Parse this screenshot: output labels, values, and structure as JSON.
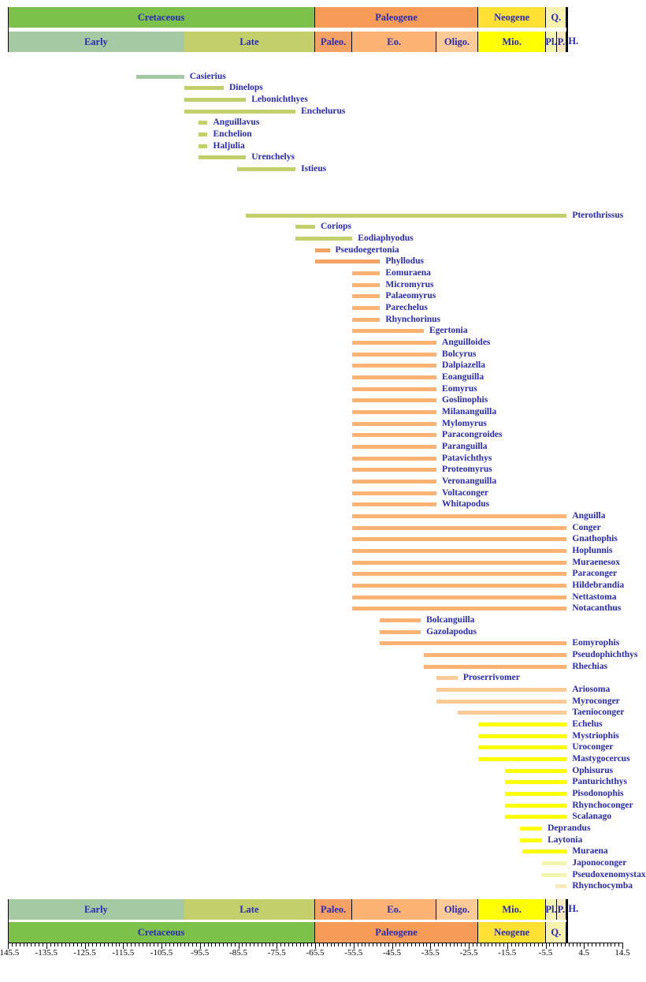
{
  "chart_data": {
    "type": "bar",
    "variant": "stratigraphic-range-chart",
    "title": "",
    "xlabel": "",
    "ylabel": "",
    "x_axis": {
      "min": -145.5,
      "max": 14.5,
      "major_tick_step": 10,
      "minor_tick_step": 1,
      "tick_labels": [
        "-145.5",
        "-135.5",
        "-125.5",
        "-115.5",
        "-105.5",
        "-95.5",
        "-85.5",
        "-75.5",
        "-65.5",
        "-55.5",
        "-45.5",
        "-35.5",
        "-25.5",
        "-15.5",
        "-5.5",
        "4.5",
        "14.5"
      ]
    },
    "colors": {
      "cretaceous": "#7CC24A",
      "early_cretaceous": "#A5C9A3",
      "late_cretaceous": "#C2CF6B",
      "paleogene": "#F79C58",
      "paleocene": "#F4A263",
      "eocene": "#FBB272",
      "oligocene": "#FBCA96",
      "neogene": "#FFE033",
      "miocene": "#FFFF00",
      "pliocene": "#F2F5AF",
      "pleistocene": "#FBE9BE",
      "quaternary": "#F7F3AE",
      "holocene": "#FFFFFF",
      "label_text": "#2929B2",
      "axis_text": "#000000",
      "line": "#000000"
    },
    "periods": [
      {
        "label": "Cretaceous",
        "start": -145.5,
        "end": -65.5,
        "color": "cretaceous"
      },
      {
        "label": "Paleogene",
        "start": -65.5,
        "end": -23.03,
        "color": "paleogene"
      },
      {
        "label": "Neogene",
        "start": -23.03,
        "end": -5.33,
        "color": "neogene"
      },
      {
        "label": "Q.",
        "start": -5.33,
        "end": 0,
        "color": "quaternary"
      }
    ],
    "epochs": [
      {
        "label": "Early",
        "start": -145.5,
        "end": -99.6,
        "color": "early_cretaceous",
        "divider_right": false
      },
      {
        "label": "Late",
        "start": -99.6,
        "end": -65.5,
        "color": "late_cretaceous",
        "divider_right": true
      },
      {
        "label": "Paleo.",
        "start": -65.5,
        "end": -55.8,
        "color": "paleocene",
        "divider_right": true
      },
      {
        "label": "Eo.",
        "start": -55.8,
        "end": -33.9,
        "color": "eocene",
        "divider_right": true
      },
      {
        "label": "Oligo.",
        "start": -33.9,
        "end": -23.03,
        "color": "oligocene",
        "divider_right": true
      },
      {
        "label": "Mio.",
        "start": -23.03,
        "end": -5.33,
        "color": "miocene",
        "divider_right": true
      },
      {
        "label": "Pl.",
        "start": -5.33,
        "end": -2.588,
        "color": "pliocene",
        "divider_right": true
      },
      {
        "label": "P.",
        "start": -2.588,
        "end": 0,
        "color": "pleistocene",
        "divider_right": true
      },
      {
        "label": "H.",
        "start": 0,
        "end": 0,
        "color": "holocene",
        "divider_right": false,
        "label_outside": true
      }
    ],
    "row_gap": {
      "after": "Istieus",
      "blank_rows": 3
    },
    "taxa": [
      {
        "name": "Casierius",
        "start": -112,
        "end": -99.6,
        "color": "early_cretaceous"
      },
      {
        "name": "Dinelops",
        "start": -99.6,
        "end": -89.3,
        "color": "late_cretaceous"
      },
      {
        "name": "Lebonichthyes",
        "start": -99.6,
        "end": -83.5,
        "color": "late_cretaceous"
      },
      {
        "name": "Enchelurus",
        "start": -99.6,
        "end": -70.6,
        "color": "late_cretaceous"
      },
      {
        "name": "Anguillavus",
        "start": -95.8,
        "end": -93.5,
        "color": "late_cretaceous"
      },
      {
        "name": "Enchelion",
        "start": -95.8,
        "end": -93.5,
        "color": "late_cretaceous"
      },
      {
        "name": "Haljulia",
        "start": -95.8,
        "end": -93.5,
        "color": "late_cretaceous"
      },
      {
        "name": "Urenchelys",
        "start": -95.8,
        "end": -83.5,
        "color": "late_cretaceous"
      },
      {
        "name": "Istieus",
        "start": -85.8,
        "end": -70.6,
        "color": "late_cretaceous"
      },
      {
        "name": "Pterothrissus",
        "start": -83.5,
        "end": 0,
        "color": "late_cretaceous"
      },
      {
        "name": "Coriops",
        "start": -70.6,
        "end": -65.5,
        "color": "late_cretaceous"
      },
      {
        "name": "Eodiaphyodus",
        "start": -70.6,
        "end": -55.8,
        "color": "late_cretaceous"
      },
      {
        "name": "Pseudoegertonia",
        "start": -65.5,
        "end": -61.7,
        "color": "paleocene"
      },
      {
        "name": "Phyllodus",
        "start": -65.5,
        "end": -48.6,
        "color": "paleocene"
      },
      {
        "name": "Eomuraena",
        "start": -55.8,
        "end": -48.6,
        "color": "eocene"
      },
      {
        "name": "Micromyrus",
        "start": -55.8,
        "end": -48.6,
        "color": "eocene"
      },
      {
        "name": "Palaeomyrus",
        "start": -55.8,
        "end": -48.6,
        "color": "eocene"
      },
      {
        "name": "Parechelus",
        "start": -55.8,
        "end": -48.6,
        "color": "eocene"
      },
      {
        "name": "Rhynchorinus",
        "start": -55.8,
        "end": -48.6,
        "color": "eocene"
      },
      {
        "name": "Egertonia",
        "start": -55.8,
        "end": -37.2,
        "color": "eocene"
      },
      {
        "name": "Anguilloides",
        "start": -55.8,
        "end": -33.9,
        "color": "eocene"
      },
      {
        "name": "Bolcyrus",
        "start": -55.8,
        "end": -33.9,
        "color": "eocene"
      },
      {
        "name": "Dalpiazella",
        "start": -55.8,
        "end": -33.9,
        "color": "eocene"
      },
      {
        "name": "Eoanguilla",
        "start": -55.8,
        "end": -33.9,
        "color": "eocene"
      },
      {
        "name": "Eomyrus",
        "start": -55.8,
        "end": -33.9,
        "color": "eocene"
      },
      {
        "name": "Goslinophis",
        "start": -55.8,
        "end": -33.9,
        "color": "eocene"
      },
      {
        "name": "Milananguilla",
        "start": -55.8,
        "end": -33.9,
        "color": "eocene"
      },
      {
        "name": "Mylomyrus",
        "start": -55.8,
        "end": -33.9,
        "color": "eocene"
      },
      {
        "name": "Paracongroides",
        "start": -55.8,
        "end": -33.9,
        "color": "eocene"
      },
      {
        "name": "Paranguilla",
        "start": -55.8,
        "end": -33.9,
        "color": "eocene"
      },
      {
        "name": "Patavichthys",
        "start": -55.8,
        "end": -33.9,
        "color": "eocene"
      },
      {
        "name": "Proteomyrus",
        "start": -55.8,
        "end": -33.9,
        "color": "eocene"
      },
      {
        "name": "Veronanguilla",
        "start": -55.8,
        "end": -33.9,
        "color": "eocene"
      },
      {
        "name": "Voltaconger",
        "start": -55.8,
        "end": -33.9,
        "color": "eocene"
      },
      {
        "name": "Whitapodus",
        "start": -55.8,
        "end": -33.9,
        "color": "eocene"
      },
      {
        "name": "Anguilla",
        "start": -55.8,
        "end": 0,
        "color": "eocene"
      },
      {
        "name": "Conger",
        "start": -55.8,
        "end": 0,
        "color": "eocene"
      },
      {
        "name": "Gnathophis",
        "start": -55.8,
        "end": 0,
        "color": "eocene"
      },
      {
        "name": "Hoplunnis",
        "start": -55.8,
        "end": 0,
        "color": "eocene"
      },
      {
        "name": "Muraenesox",
        "start": -55.8,
        "end": 0,
        "color": "eocene"
      },
      {
        "name": "Paraconger",
        "start": -55.8,
        "end": 0,
        "color": "eocene"
      },
      {
        "name": "Hildebrandia",
        "start": -55.8,
        "end": 0,
        "color": "eocene"
      },
      {
        "name": "Nettastoma",
        "start": -55.8,
        "end": 0,
        "color": "eocene"
      },
      {
        "name": "Notacanthus",
        "start": -55.8,
        "end": 0,
        "color": "eocene"
      },
      {
        "name": "Bolcanguilla",
        "start": -48.6,
        "end": -38,
        "color": "eocene"
      },
      {
        "name": "Gazolapodus",
        "start": -48.6,
        "end": -38,
        "color": "eocene"
      },
      {
        "name": "Eomyrophis",
        "start": -48.6,
        "end": 0,
        "color": "eocene"
      },
      {
        "name": "Pseudophichthys",
        "start": -37.2,
        "end": 0,
        "color": "eocene"
      },
      {
        "name": "Rhechias",
        "start": -37.2,
        "end": 0,
        "color": "eocene"
      },
      {
        "name": "Proserrivomer",
        "start": -33.9,
        "end": -28.4,
        "color": "oligocene"
      },
      {
        "name": "Ariosoma",
        "start": -33.9,
        "end": 0,
        "color": "oligocene"
      },
      {
        "name": "Myroconger",
        "start": -33.9,
        "end": 0,
        "color": "oligocene"
      },
      {
        "name": "Taenioconger",
        "start": -28.4,
        "end": 0,
        "color": "oligocene"
      },
      {
        "name": "Echelus",
        "start": -23,
        "end": 0,
        "color": "miocene"
      },
      {
        "name": "Mystriophis",
        "start": -23,
        "end": 0,
        "color": "miocene"
      },
      {
        "name": "Uroconger",
        "start": -23,
        "end": 0,
        "color": "miocene"
      },
      {
        "name": "Mastygocercus",
        "start": -23,
        "end": 0,
        "color": "miocene"
      },
      {
        "name": "Ophisurus",
        "start": -16,
        "end": 0,
        "color": "miocene"
      },
      {
        "name": "Panturichthys",
        "start": -16,
        "end": 0,
        "color": "miocene"
      },
      {
        "name": "Pisodonophis",
        "start": -16,
        "end": 0,
        "color": "miocene"
      },
      {
        "name": "Rhynchoconger",
        "start": -16,
        "end": 0,
        "color": "miocene"
      },
      {
        "name": "Scalanago",
        "start": -16,
        "end": 0,
        "color": "miocene"
      },
      {
        "name": "Deprandus",
        "start": -12.2,
        "end": -6.4,
        "color": "miocene"
      },
      {
        "name": "Laytonia",
        "start": -12.2,
        "end": -6.4,
        "color": "miocene"
      },
      {
        "name": "Muraena",
        "start": -11.6,
        "end": 0,
        "color": "miocene"
      },
      {
        "name": "Japonoconger",
        "start": -6.4,
        "end": 0,
        "color": "pliocene"
      },
      {
        "name": "Pseudoxenomystax",
        "start": -6.6,
        "end": 0,
        "color": "pliocene"
      },
      {
        "name": "Rhynchocymba",
        "start": -2.9,
        "end": 0,
        "color": "pleistocene"
      }
    ]
  }
}
